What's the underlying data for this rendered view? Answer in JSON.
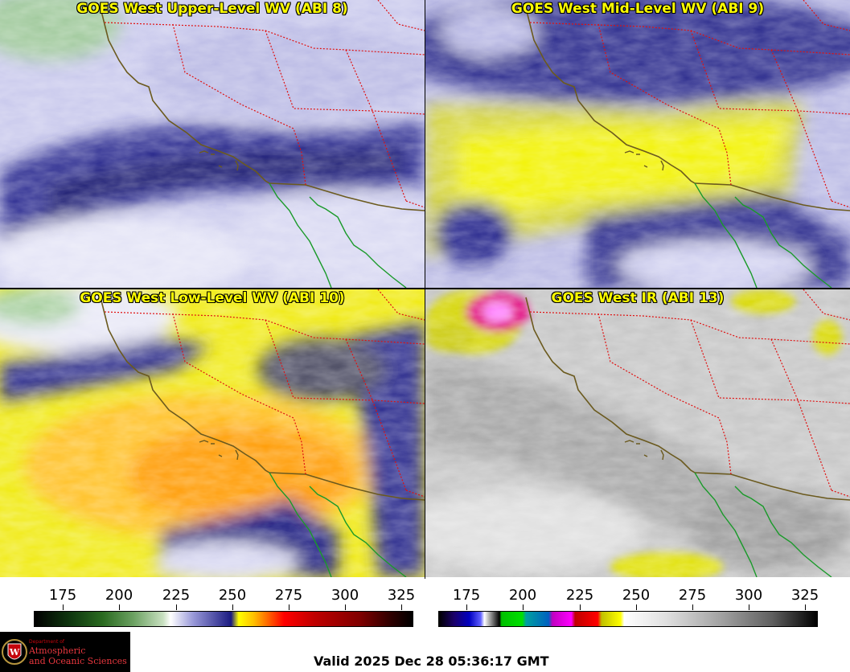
{
  "panels": [
    {
      "title": "GOES West Upper-Level WV (ABI 8)"
    },
    {
      "title": "GOES West Mid-Level WV (ABI 9)"
    },
    {
      "title": "GOES West Low-Level WV (ABI 10)"
    },
    {
      "title": "GOES West IR (ABI 13)"
    }
  ],
  "colorbars": {
    "wv": {
      "ticks": [
        "175",
        "200",
        "225",
        "250",
        "275",
        "300",
        "325"
      ]
    },
    "ir": {
      "ticks": [
        "175",
        "200",
        "225",
        "250",
        "275",
        "300",
        "325"
      ]
    }
  },
  "logo": {
    "department": "Department of",
    "line1": "Atmospheric",
    "line2": "and Oceanic Sciences"
  },
  "valid_time": "Valid 2025 Dec 28 05:36:17 GMT",
  "colors": {
    "coastline": "#6b5a1e",
    "state_borders": "#e01010",
    "baja_coast": "#1a9a2a",
    "wv_moist": "#1a1a80",
    "wv_dry": "#ffff00",
    "ir_gray": "#9a9a9a"
  }
}
